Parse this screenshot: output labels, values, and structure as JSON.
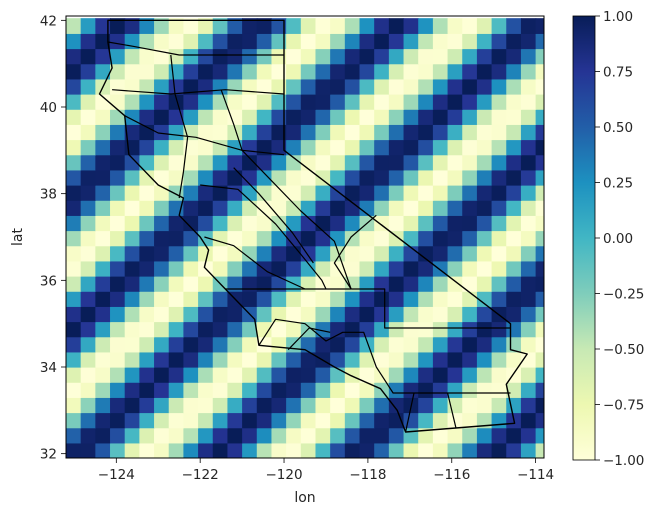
{
  "chart_data": {
    "type": "heatmap",
    "title": "",
    "xlabel": "lon",
    "ylabel": "lat",
    "xlim": [
      -125.2,
      -113.8
    ],
    "ylim": [
      31.9,
      42.1
    ],
    "xticks": [
      -124,
      -122,
      -120,
      -118,
      -116,
      -114
    ],
    "xtick_labels": [
      "−124",
      "−122",
      "−120",
      "−118",
      "−116",
      "−114"
    ],
    "yticks": [
      32,
      34,
      36,
      38,
      40,
      42
    ],
    "ytick_labels": [
      "32",
      "34",
      "36",
      "38",
      "40",
      "42"
    ],
    "grid": {
      "lon_start": -125.2,
      "lon_step": 0.35,
      "nx": 33,
      "lat_start": 31.9,
      "lat_step": 0.35,
      "ny": 29
    },
    "field": "cos(-1.9*(lon+119.4) + 2.1*(lat-40.0))",
    "colorbar": {
      "colormap": "YlGnBu",
      "vmin": -1.0,
      "vmax": 1.0,
      "ticks": [
        1.0,
        0.75,
        0.5,
        0.25,
        0.0,
        -0.25,
        -0.5,
        -0.75,
        -1.0
      ],
      "tick_labels": [
        "1.00",
        "0.75",
        "0.50",
        "0.25",
        "0.00",
        "−0.25",
        "−0.50",
        "−0.75",
        "−1.00"
      ],
      "colors": [
        "#ffffd9",
        "#edf8b1",
        "#c7e9b4",
        "#7fcdbb",
        "#41b6c4",
        "#1d91c0",
        "#225ea8",
        "#253494",
        "#081d58"
      ]
    },
    "overlay": "California county boundaries",
    "state_outline": [
      [
        -124.2,
        42.0
      ],
      [
        -120.0,
        42.0
      ],
      [
        -120.0,
        39.0
      ],
      [
        -114.6,
        35.0
      ],
      [
        -114.6,
        34.4
      ],
      [
        -114.2,
        34.3
      ],
      [
        -114.7,
        33.6
      ],
      [
        -114.5,
        32.7
      ],
      [
        -117.1,
        32.5
      ],
      [
        -117.3,
        33.0
      ],
      [
        -117.7,
        33.5
      ],
      [
        -118.4,
        33.8
      ],
      [
        -118.8,
        34.0
      ],
      [
        -119.5,
        34.4
      ],
      [
        -120.6,
        34.5
      ],
      [
        -120.7,
        35.1
      ],
      [
        -121.4,
        35.8
      ],
      [
        -121.9,
        36.3
      ],
      [
        -121.8,
        36.7
      ],
      [
        -122.0,
        37.0
      ],
      [
        -122.5,
        37.5
      ],
      [
        -122.4,
        37.9
      ],
      [
        -123.0,
        38.2
      ],
      [
        -123.7,
        38.9
      ],
      [
        -123.8,
        39.8
      ],
      [
        -124.4,
        40.3
      ],
      [
        -124.1,
        40.9
      ],
      [
        -124.2,
        41.5
      ],
      [
        -124.2,
        42.0
      ]
    ],
    "county_lines": [
      [
        [
          -121.4,
          35.8
        ],
        [
          -118.4,
          35.8
        ]
      ],
      [
        [
          -118.4,
          35.8
        ],
        [
          -117.6,
          35.8
        ],
        [
          -117.6,
          34.9
        ],
        [
          -114.6,
          34.9
        ]
      ],
      [
        [
          -120.0,
          38.9
        ],
        [
          -121.0,
          39.0
        ],
        [
          -122.1,
          39.3
        ],
        [
          -123.0,
          39.4
        ],
        [
          -123.8,
          39.8
        ]
      ],
      [
        [
          -120.0,
          41.2
        ],
        [
          -122.5,
          41.2
        ],
        [
          -123.6,
          41.4
        ],
        [
          -124.2,
          41.5
        ]
      ],
      [
        [
          -120.0,
          40.3
        ],
        [
          -121.4,
          40.4
        ],
        [
          -122.7,
          40.3
        ],
        [
          -124.1,
          40.4
        ]
      ],
      [
        [
          -122.7,
          41.2
        ],
        [
          -122.6,
          40.3
        ],
        [
          -122.3,
          39.3
        ],
        [
          -122.4,
          38.5
        ],
        [
          -122.5,
          37.9
        ]
      ],
      [
        [
          -121.5,
          40.4
        ],
        [
          -121.2,
          39.6
        ],
        [
          -121.0,
          39.0
        ],
        [
          -120.3,
          38.3
        ],
        [
          -119.6,
          37.6
        ],
        [
          -118.8,
          36.9
        ],
        [
          -118.4,
          35.8
        ]
      ],
      [
        [
          -122.0,
          38.2
        ],
        [
          -121.1,
          38.1
        ],
        [
          -120.2,
          37.3
        ],
        [
          -119.6,
          36.6
        ],
        [
          -119.1,
          36.0
        ],
        [
          -119.0,
          35.8
        ]
      ],
      [
        [
          -121.2,
          38.6
        ],
        [
          -120.6,
          38.0
        ],
        [
          -119.8,
          37.1
        ],
        [
          -119.3,
          36.4
        ]
      ],
      [
        [
          -117.8,
          37.5
        ],
        [
          -118.4,
          37.0
        ],
        [
          -118.8,
          36.4
        ],
        [
          -118.4,
          35.8
        ]
      ],
      [
        [
          -121.9,
          37.0
        ],
        [
          -121.2,
          36.8
        ],
        [
          -120.4,
          36.2
        ],
        [
          -119.5,
          35.8
        ]
      ],
      [
        [
          -120.6,
          34.5
        ],
        [
          -120.2,
          35.1
        ],
        [
          -119.5,
          35.0
        ],
        [
          -119.0,
          34.6
        ],
        [
          -118.6,
          34.8
        ],
        [
          -118.1,
          34.8
        ],
        [
          -117.8,
          34.0
        ],
        [
          -117.4,
          33.4
        ],
        [
          -116.9,
          33.4
        ],
        [
          -116.1,
          33.4
        ],
        [
          -114.6,
          33.4
        ]
      ],
      [
        [
          -117.1,
          32.5
        ],
        [
          -116.9,
          33.4
        ]
      ],
      [
        [
          -116.1,
          33.4
        ],
        [
          -115.9,
          32.6
        ]
      ],
      [
        [
          -119.9,
          34.4
        ],
        [
          -119.4,
          34.9
        ],
        [
          -118.9,
          34.8
        ]
      ]
    ]
  }
}
